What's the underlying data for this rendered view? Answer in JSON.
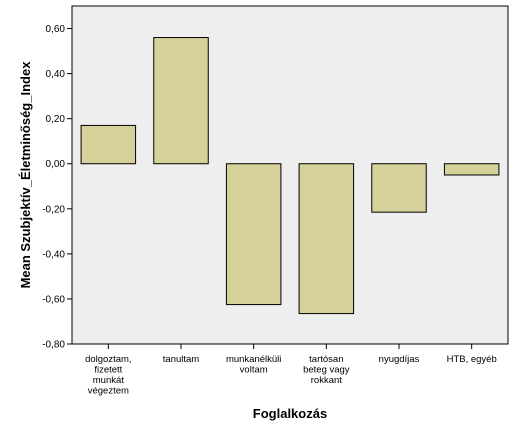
{
  "chart_data": {
    "type": "bar",
    "title": "",
    "xlabel": "Foglalkozás",
    "ylabel": "Mean Szubjektív_Életminőség_Index",
    "ylim": [
      -0.8,
      0.7
    ],
    "yticks": [
      "-0,80",
      "-0,60",
      "-0,40",
      "-0,20",
      "0,00",
      "0,20",
      "0,40",
      "0,60"
    ],
    "ytick_values": [
      -0.8,
      -0.6,
      -0.4,
      -0.2,
      0.0,
      0.2,
      0.4,
      0.6
    ],
    "categories": [
      [
        "dolgoztam,",
        "fizetett",
        "munkát",
        "végeztem"
      ],
      [
        "tanultam"
      ],
      [
        "munkanélküli",
        "voltam"
      ],
      [
        "tartósan",
        "beteg vagy",
        "rokkant"
      ],
      [
        "nyugdíjas"
      ],
      [
        "HTB, egyéb"
      ]
    ],
    "values": [
      0.17,
      0.56,
      -0.625,
      -0.665,
      -0.215,
      -0.05
    ],
    "bar_color": "#d6d19a",
    "background_color": "#eeeeee",
    "grid": false,
    "legend": "none"
  }
}
